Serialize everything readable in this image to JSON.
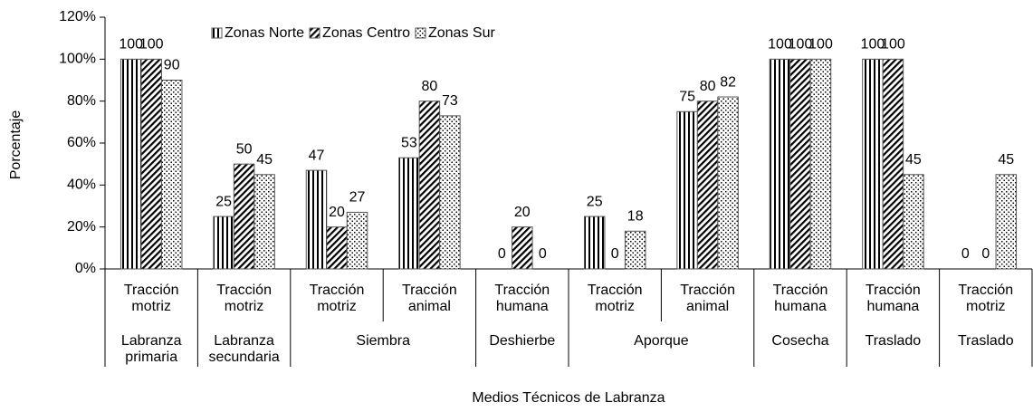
{
  "chart_data": {
    "type": "bar",
    "y_label": "Porcentaje",
    "x_label": "Medios Técnicos de Labranza",
    "groups": [
      {
        "label": "Labranza primaria",
        "categories": [
          "Tracción motriz"
        ]
      },
      {
        "label": "Labranza secundaria",
        "categories": [
          "Tracción motriz"
        ]
      },
      {
        "label": "Siembra",
        "categories": [
          "Tracción motriz",
          "Tracción animal"
        ]
      },
      {
        "label": "Deshierbe",
        "categories": [
          "Tracción humana"
        ]
      },
      {
        "label": "Aporque",
        "categories": [
          "Tracción motriz",
          "Tracción animal"
        ]
      },
      {
        "label": "Cosecha",
        "categories": [
          "Tracción humana"
        ]
      },
      {
        "label": "Traslado",
        "categories": [
          "Tracción humana"
        ]
      },
      {
        "label": "Traslado",
        "categories": [
          "Tracción motriz"
        ]
      }
    ],
    "series": [
      {
        "name": "Zonas Norte",
        "color": "#000000",
        "pattern": "vertical",
        "values": [
          100,
          25,
          47,
          53,
          0,
          25,
          75,
          100,
          100,
          0
        ]
      },
      {
        "name": "Zonas Centro",
        "color": "#000000",
        "pattern": "diagonal",
        "values": [
          100,
          50,
          20,
          80,
          20,
          0,
          80,
          100,
          100,
          0
        ]
      },
      {
        "name": "Zonas Sur",
        "color": "#000000",
        "pattern": "dots",
        "values": [
          90,
          45,
          27,
          73,
          0,
          18,
          82,
          100,
          45,
          45
        ]
      }
    ],
    "ylim": [
      0,
      120
    ],
    "yticks": [
      {
        "value": 0,
        "label": "0%"
      },
      {
        "value": 20,
        "label": "20%"
      },
      {
        "value": 40,
        "label": "40%"
      },
      {
        "value": 60,
        "label": "60%"
      },
      {
        "value": 80,
        "label": "80%"
      },
      {
        "value": 100,
        "label": "100%"
      },
      {
        "value": 120,
        "label": "120%"
      }
    ],
    "grid": false,
    "legend": "top"
  }
}
